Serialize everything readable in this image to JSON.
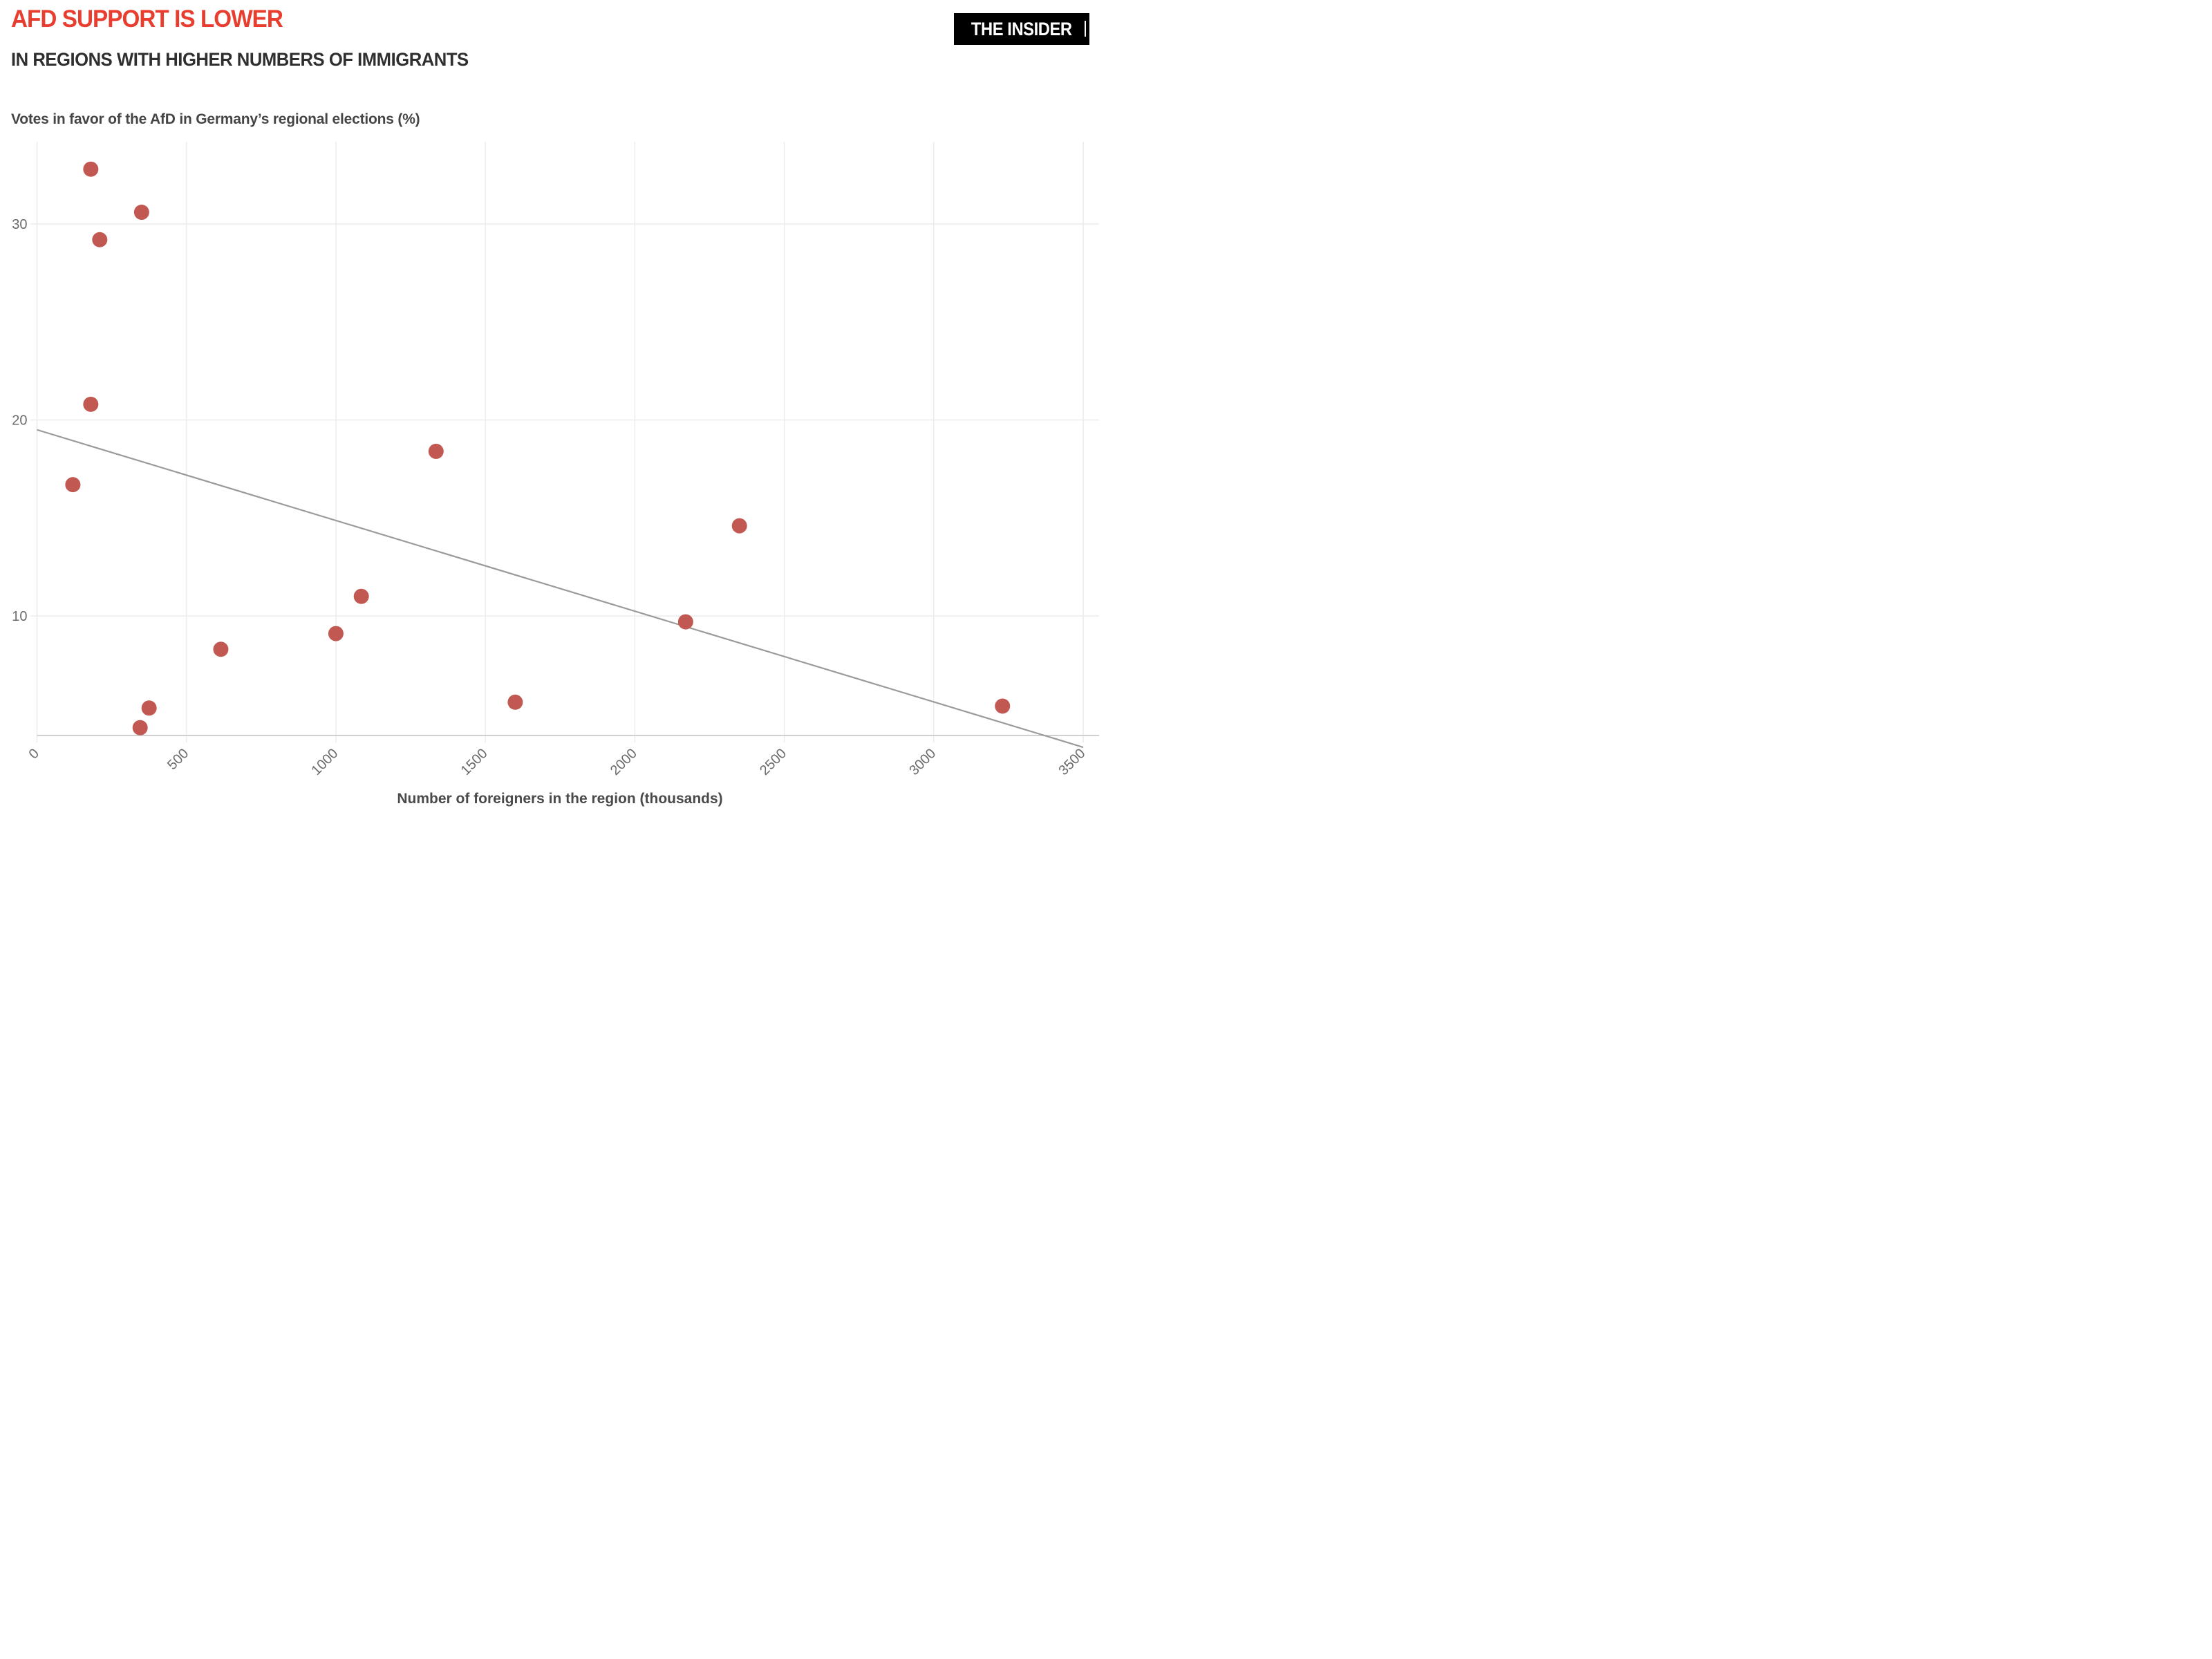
{
  "header": {
    "title": "AFD SUPPORT IS LOWER",
    "subtitle": "IN REGIONS WITH HIGHER NUMBERS OF IMMIGRANTS"
  },
  "logo": {
    "text": "THE INSIDER"
  },
  "chart_data": {
    "type": "scatter",
    "title": "Votes in favor of the AfD in Germany’s regional elections (%)",
    "xlabel": "Number of foreigners in the region (thousands)",
    "ylabel": "",
    "x_ticks": [
      0,
      500,
      1000,
      1500,
      2000,
      2500,
      3000,
      3500
    ],
    "y_ticks": [
      10,
      20,
      30
    ],
    "xlim": [
      0,
      3500
    ],
    "ylim": [
      3.9,
      34.2
    ],
    "grid": true,
    "legend": "none",
    "points": [
      {
        "x": 180,
        "y": 32.8
      },
      {
        "x": 350,
        "y": 30.6
      },
      {
        "x": 210,
        "y": 29.2
      },
      {
        "x": 180,
        "y": 20.8
      },
      {
        "x": 120,
        "y": 16.7
      },
      {
        "x": 1335,
        "y": 18.4
      },
      {
        "x": 2350,
        "y": 14.6
      },
      {
        "x": 2170,
        "y": 9.7
      },
      {
        "x": 1085,
        "y": 11.0
      },
      {
        "x": 1000,
        "y": 9.1
      },
      {
        "x": 615,
        "y": 8.3
      },
      {
        "x": 375,
        "y": 5.3
      },
      {
        "x": 345,
        "y": 4.3
      },
      {
        "x": 1600,
        "y": 5.6
      },
      {
        "x": 3230,
        "y": 5.4
      }
    ],
    "trend": {
      "x1": 0,
      "y1": 19.5,
      "x2": 3500,
      "y2": 3.3
    },
    "colors": {
      "point": "#c15852",
      "trend": "#9b9b9b",
      "grid": "#ececec",
      "axis": "#d0d0d0",
      "tick_text": "#6a6a6a"
    }
  }
}
